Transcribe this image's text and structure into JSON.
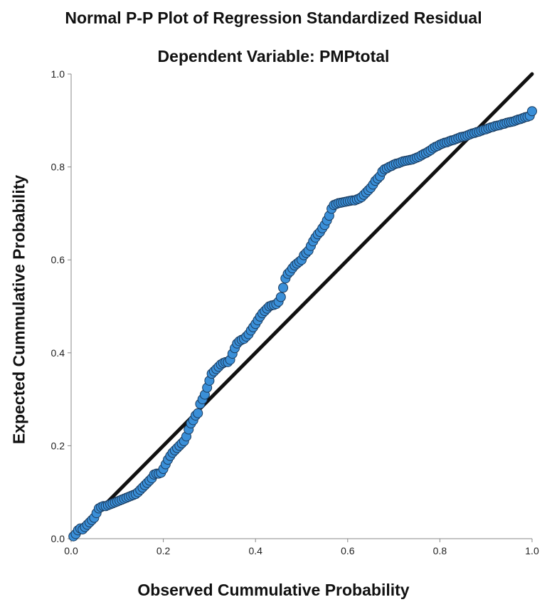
{
  "chart_data": {
    "type": "scatter",
    "title": "Normal P-P Plot of Regression Standardized Residual",
    "subtitle": "Dependent Variable: PMPtotal",
    "xlabel": "Observed Cummulative Probability",
    "ylabel": "Expected Cummulative Probability",
    "xlim": [
      0.0,
      1.0
    ],
    "ylim": [
      0.0,
      1.0
    ],
    "x_ticks": [
      "0.0",
      "0.2",
      "0.4",
      "0.6",
      "0.8",
      "1.0"
    ],
    "y_ticks": [
      "0.0",
      "0.2",
      "0.4",
      "0.6",
      "0.8",
      "1.0"
    ],
    "grid": false,
    "reference_line": {
      "from": [
        0.0,
        0.0
      ],
      "to": [
        1.0,
        1.0
      ]
    },
    "point_color": "#3a8fd8",
    "point_edge_color": "#1a3a5c",
    "line_color": "#111111",
    "points": [
      [
        0.005,
        0.005
      ],
      [
        0.01,
        0.01
      ],
      [
        0.015,
        0.018
      ],
      [
        0.02,
        0.022
      ],
      [
        0.025,
        0.02
      ],
      [
        0.03,
        0.025
      ],
      [
        0.035,
        0.03
      ],
      [
        0.04,
        0.035
      ],
      [
        0.045,
        0.04
      ],
      [
        0.05,
        0.045
      ],
      [
        0.055,
        0.055
      ],
      [
        0.06,
        0.065
      ],
      [
        0.065,
        0.068
      ],
      [
        0.07,
        0.07
      ],
      [
        0.075,
        0.07
      ],
      [
        0.08,
        0.072
      ],
      [
        0.085,
        0.074
      ],
      [
        0.09,
        0.076
      ],
      [
        0.095,
        0.078
      ],
      [
        0.1,
        0.08
      ],
      [
        0.105,
        0.082
      ],
      [
        0.11,
        0.084
      ],
      [
        0.115,
        0.086
      ],
      [
        0.12,
        0.088
      ],
      [
        0.125,
        0.09
      ],
      [
        0.13,
        0.092
      ],
      [
        0.135,
        0.094
      ],
      [
        0.14,
        0.096
      ],
      [
        0.145,
        0.1
      ],
      [
        0.15,
        0.105
      ],
      [
        0.155,
        0.11
      ],
      [
        0.16,
        0.115
      ],
      [
        0.165,
        0.12
      ],
      [
        0.17,
        0.125
      ],
      [
        0.175,
        0.13
      ],
      [
        0.18,
        0.138
      ],
      [
        0.185,
        0.14
      ],
      [
        0.19,
        0.14
      ],
      [
        0.195,
        0.142
      ],
      [
        0.2,
        0.15
      ],
      [
        0.205,
        0.16
      ],
      [
        0.21,
        0.17
      ],
      [
        0.215,
        0.178
      ],
      [
        0.22,
        0.185
      ],
      [
        0.225,
        0.19
      ],
      [
        0.23,
        0.195
      ],
      [
        0.235,
        0.2
      ],
      [
        0.24,
        0.205
      ],
      [
        0.245,
        0.21
      ],
      [
        0.25,
        0.22
      ],
      [
        0.255,
        0.235
      ],
      [
        0.26,
        0.248
      ],
      [
        0.265,
        0.255
      ],
      [
        0.27,
        0.265
      ],
      [
        0.275,
        0.27
      ],
      [
        0.28,
        0.29
      ],
      [
        0.285,
        0.3
      ],
      [
        0.29,
        0.31
      ],
      [
        0.295,
        0.325
      ],
      [
        0.3,
        0.34
      ],
      [
        0.305,
        0.355
      ],
      [
        0.31,
        0.36
      ],
      [
        0.315,
        0.365
      ],
      [
        0.32,
        0.37
      ],
      [
        0.325,
        0.375
      ],
      [
        0.33,
        0.378
      ],
      [
        0.335,
        0.38
      ],
      [
        0.34,
        0.38
      ],
      [
        0.345,
        0.385
      ],
      [
        0.35,
        0.398
      ],
      [
        0.355,
        0.41
      ],
      [
        0.36,
        0.42
      ],
      [
        0.365,
        0.425
      ],
      [
        0.37,
        0.428
      ],
      [
        0.375,
        0.43
      ],
      [
        0.38,
        0.435
      ],
      [
        0.385,
        0.44
      ],
      [
        0.39,
        0.448
      ],
      [
        0.395,
        0.455
      ],
      [
        0.4,
        0.462
      ],
      [
        0.405,
        0.47
      ],
      [
        0.41,
        0.478
      ],
      [
        0.415,
        0.485
      ],
      [
        0.42,
        0.49
      ],
      [
        0.425,
        0.495
      ],
      [
        0.43,
        0.5
      ],
      [
        0.435,
        0.502
      ],
      [
        0.44,
        0.503
      ],
      [
        0.445,
        0.505
      ],
      [
        0.45,
        0.51
      ],
      [
        0.455,
        0.52
      ],
      [
        0.46,
        0.54
      ],
      [
        0.465,
        0.56
      ],
      [
        0.47,
        0.57
      ],
      [
        0.475,
        0.575
      ],
      [
        0.48,
        0.582
      ],
      [
        0.485,
        0.588
      ],
      [
        0.49,
        0.592
      ],
      [
        0.495,
        0.596
      ],
      [
        0.5,
        0.6
      ],
      [
        0.505,
        0.61
      ],
      [
        0.51,
        0.615
      ],
      [
        0.515,
        0.62
      ],
      [
        0.52,
        0.63
      ],
      [
        0.525,
        0.64
      ],
      [
        0.53,
        0.648
      ],
      [
        0.535,
        0.655
      ],
      [
        0.54,
        0.66
      ],
      [
        0.545,
        0.668
      ],
      [
        0.55,
        0.675
      ],
      [
        0.555,
        0.685
      ],
      [
        0.56,
        0.695
      ],
      [
        0.565,
        0.71
      ],
      [
        0.57,
        0.718
      ],
      [
        0.575,
        0.72
      ],
      [
        0.58,
        0.722
      ],
      [
        0.585,
        0.723
      ],
      [
        0.59,
        0.724
      ],
      [
        0.595,
        0.725
      ],
      [
        0.6,
        0.726
      ],
      [
        0.605,
        0.727
      ],
      [
        0.61,
        0.728
      ],
      [
        0.615,
        0.728
      ],
      [
        0.62,
        0.73
      ],
      [
        0.625,
        0.732
      ],
      [
        0.63,
        0.735
      ],
      [
        0.635,
        0.74
      ],
      [
        0.64,
        0.745
      ],
      [
        0.645,
        0.75
      ],
      [
        0.65,
        0.755
      ],
      [
        0.655,
        0.762
      ],
      [
        0.66,
        0.77
      ],
      [
        0.665,
        0.775
      ],
      [
        0.67,
        0.78
      ],
      [
        0.675,
        0.79
      ],
      [
        0.68,
        0.795
      ],
      [
        0.685,
        0.797
      ],
      [
        0.69,
        0.8
      ],
      [
        0.695,
        0.802
      ],
      [
        0.7,
        0.805
      ],
      [
        0.705,
        0.807
      ],
      [
        0.71,
        0.808
      ],
      [
        0.715,
        0.81
      ],
      [
        0.72,
        0.812
      ],
      [
        0.725,
        0.813
      ],
      [
        0.73,
        0.814
      ],
      [
        0.735,
        0.815
      ],
      [
        0.74,
        0.816
      ],
      [
        0.745,
        0.818
      ],
      [
        0.75,
        0.82
      ],
      [
        0.755,
        0.822
      ],
      [
        0.76,
        0.825
      ],
      [
        0.765,
        0.828
      ],
      [
        0.77,
        0.83
      ],
      [
        0.775,
        0.833
      ],
      [
        0.78,
        0.836
      ],
      [
        0.785,
        0.84
      ],
      [
        0.79,
        0.843
      ],
      [
        0.795,
        0.845
      ],
      [
        0.8,
        0.848
      ],
      [
        0.805,
        0.85
      ],
      [
        0.81,
        0.852
      ],
      [
        0.815,
        0.853
      ],
      [
        0.82,
        0.855
      ],
      [
        0.825,
        0.857
      ],
      [
        0.83,
        0.858
      ],
      [
        0.835,
        0.86
      ],
      [
        0.84,
        0.862
      ],
      [
        0.845,
        0.864
      ],
      [
        0.85,
        0.865
      ],
      [
        0.855,
        0.866
      ],
      [
        0.86,
        0.868
      ],
      [
        0.865,
        0.87
      ],
      [
        0.87,
        0.872
      ],
      [
        0.875,
        0.873
      ],
      [
        0.88,
        0.875
      ],
      [
        0.885,
        0.876
      ],
      [
        0.89,
        0.878
      ],
      [
        0.895,
        0.88
      ],
      [
        0.9,
        0.881
      ],
      [
        0.905,
        0.883
      ],
      [
        0.91,
        0.885
      ],
      [
        0.915,
        0.886
      ],
      [
        0.92,
        0.888
      ],
      [
        0.925,
        0.889
      ],
      [
        0.93,
        0.89
      ],
      [
        0.935,
        0.892
      ],
      [
        0.94,
        0.893
      ],
      [
        0.945,
        0.895
      ],
      [
        0.95,
        0.896
      ],
      [
        0.955,
        0.897
      ],
      [
        0.96,
        0.898
      ],
      [
        0.965,
        0.9
      ],
      [
        0.97,
        0.902
      ],
      [
        0.975,
        0.903
      ],
      [
        0.98,
        0.905
      ],
      [
        0.985,
        0.907
      ],
      [
        0.99,
        0.908
      ],
      [
        0.995,
        0.91
      ],
      [
        1.0,
        0.92
      ]
    ]
  }
}
